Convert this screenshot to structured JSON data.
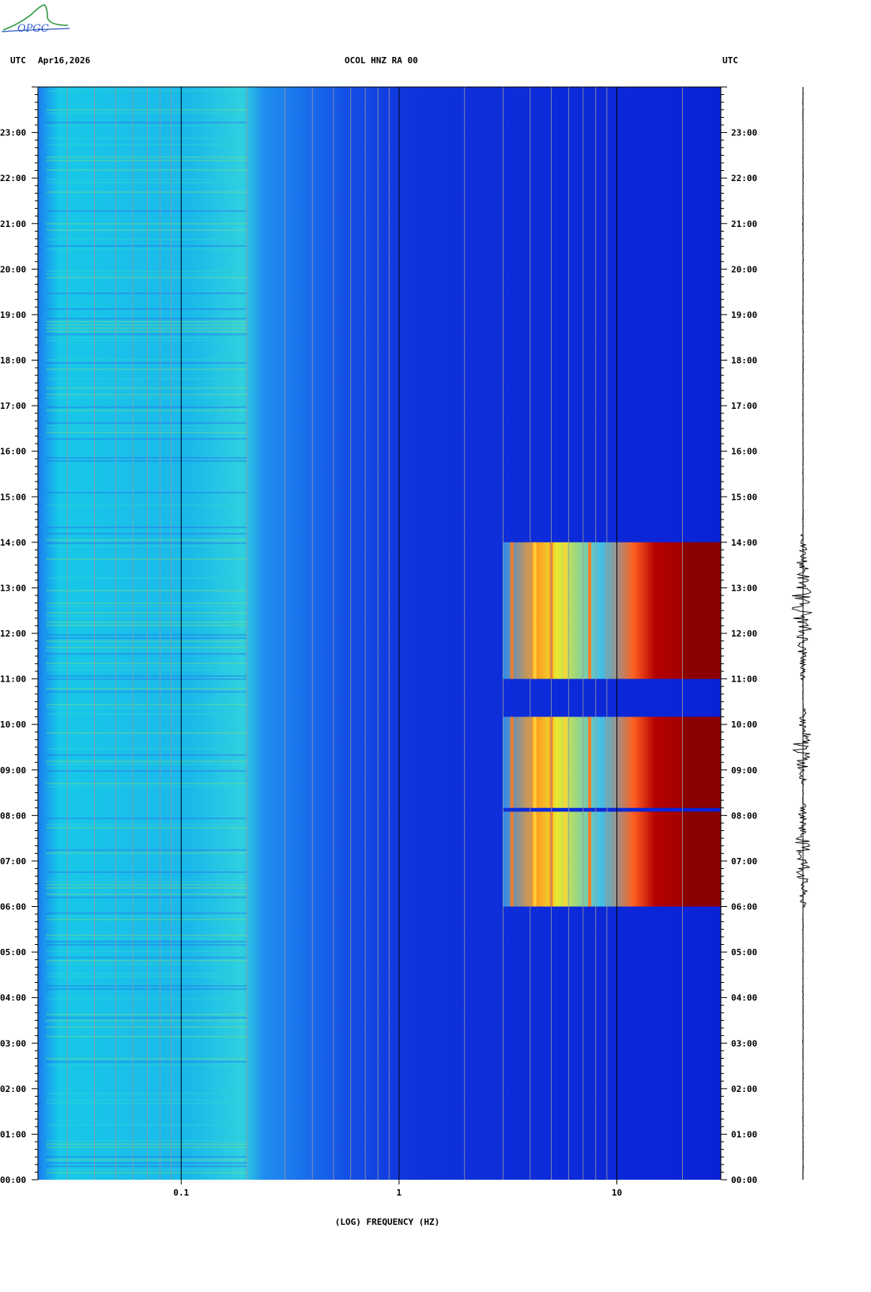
{
  "header": {
    "left_tz": "UTC",
    "date": "Apr16,2026",
    "station": "OCOL HNZ RA 00",
    "right_tz": "UTC"
  },
  "logo": {
    "text": "OPGC",
    "icon": "opgc-logo-icon",
    "color": "#2a56c6"
  },
  "colors": {
    "background": "#0a1fd8",
    "low_freq": "#18c8e8",
    "mid": "#2e8cf0",
    "hot_red": "#8b0000",
    "hot_yellow": "#ffe23a",
    "trace": "#000000"
  },
  "chart_data": {
    "type": "heatmap",
    "subtype": "spectrogram",
    "xlabel": "(LOG) FREQUENCY (HZ)",
    "x_scale": "log",
    "xlim": [
      0.022,
      30
    ],
    "x_ticks": [
      {
        "value": 0.1,
        "label": "0.1"
      },
      {
        "value": 1,
        "label": "1"
      },
      {
        "value": 10,
        "label": "10"
      }
    ],
    "ylim_hours": [
      0,
      24
    ],
    "y_ticks": [
      "00:00",
      "01:00",
      "02:00",
      "03:00",
      "04:00",
      "05:00",
      "06:00",
      "07:00",
      "08:00",
      "09:00",
      "10:00",
      "11:00",
      "12:00",
      "13:00",
      "14:00",
      "15:00",
      "16:00",
      "17:00",
      "18:00",
      "19:00",
      "20:00",
      "21:00",
      "22:00",
      "23:00"
    ],
    "high_energy_periods": [
      {
        "start": "06:00",
        "end": "08:05",
        "freq_range_hz": [
          3,
          30
        ]
      },
      {
        "start": "08:10",
        "end": "10:10",
        "freq_range_hz": [
          3,
          30
        ]
      },
      {
        "start": "11:00",
        "end": "14:00",
        "freq_range_hz": [
          3,
          30
        ]
      }
    ],
    "seismogram_active_periods": [
      {
        "start": "06:00",
        "end": "08:15"
      },
      {
        "start": "08:40",
        "end": "10:20"
      },
      {
        "start": "11:00",
        "end": "14:10"
      }
    ]
  }
}
